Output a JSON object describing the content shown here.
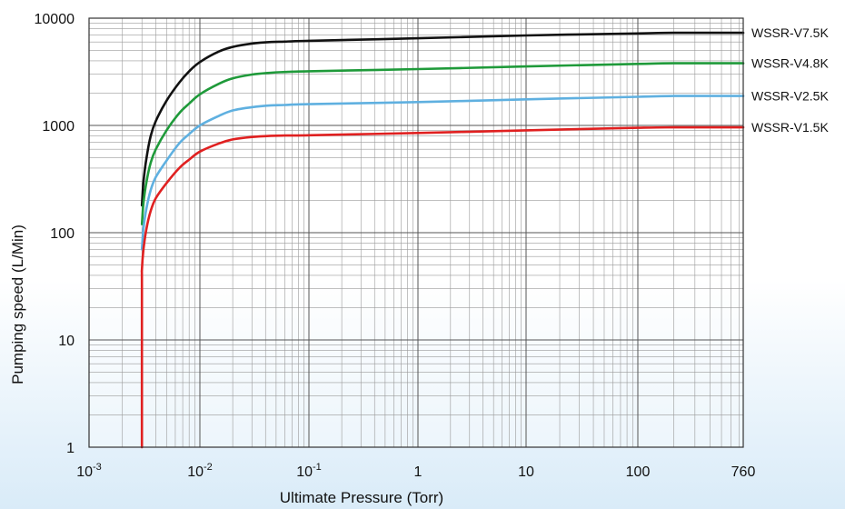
{
  "chart_data": {
    "type": "line",
    "title": "",
    "xlabel": "Ultimate Pressure (Torr)",
    "ylabel": "Pumping speed (L/Min)",
    "x_scale": "log",
    "y_scale": "log",
    "xlim": [
      0.001,
      760
    ],
    "ylim": [
      1,
      10000
    ],
    "grid": true,
    "x_ticks": [
      {
        "value": 0.001,
        "base": "10",
        "exp": "-3"
      },
      {
        "value": 0.01,
        "base": "10",
        "exp": "-2"
      },
      {
        "value": 0.1,
        "base": "10",
        "exp": "-1"
      },
      {
        "value": 1,
        "base": "1",
        "exp": ""
      },
      {
        "value": 10,
        "base": "10",
        "exp": ""
      },
      {
        "value": 100,
        "base": "100",
        "exp": ""
      },
      {
        "value": 760,
        "base": "760",
        "exp": ""
      }
    ],
    "y_ticks": [
      {
        "value": 1,
        "label": "1"
      },
      {
        "value": 10,
        "label": "10"
      },
      {
        "value": 100,
        "label": "100"
      },
      {
        "value": 1000,
        "label": "1000"
      },
      {
        "value": 10000,
        "label": "10000"
      }
    ],
    "series": [
      {
        "name": "WSSR-V7.5K",
        "color": "#111111",
        "x": [
          0.003,
          0.0031,
          0.0033,
          0.0036,
          0.004,
          0.005,
          0.0065,
          0.008,
          0.01,
          0.015,
          0.02,
          0.03,
          0.045,
          0.06,
          0.1,
          1,
          10,
          100,
          200,
          760
        ],
        "y": [
          180,
          300,
          500,
          800,
          1100,
          1700,
          2500,
          3200,
          3900,
          4900,
          5400,
          5800,
          6000,
          6050,
          6150,
          6500,
          6900,
          7200,
          7300,
          7300
        ]
      },
      {
        "name": "WSSR-V4.8K",
        "color": "#1f9a3a",
        "x": [
          0.003,
          0.0031,
          0.0033,
          0.0036,
          0.004,
          0.005,
          0.0065,
          0.008,
          0.01,
          0.015,
          0.02,
          0.03,
          0.045,
          0.06,
          0.1,
          1,
          10,
          100,
          200,
          760
        ],
        "y": [
          120,
          190,
          300,
          450,
          600,
          900,
          1300,
          1600,
          1950,
          2450,
          2750,
          2980,
          3100,
          3150,
          3200,
          3350,
          3550,
          3750,
          3800,
          3800
        ]
      },
      {
        "name": "WSSR-V2.5K",
        "color": "#5fb0e0",
        "x": [
          0.003,
          0.0031,
          0.0033,
          0.0036,
          0.004,
          0.005,
          0.0065,
          0.008,
          0.01,
          0.015,
          0.02,
          0.03,
          0.045,
          0.06,
          0.1,
          1,
          10,
          100,
          200,
          760
        ],
        "y": [
          70,
          110,
          170,
          250,
          330,
          470,
          680,
          830,
          1000,
          1230,
          1380,
          1480,
          1540,
          1550,
          1580,
          1650,
          1750,
          1850,
          1880,
          1880
        ]
      },
      {
        "name": "WSSR-V1.5K",
        "color": "#e02020",
        "x": [
          0.003,
          0.003,
          0.003,
          0.0031,
          0.0033,
          0.0036,
          0.004,
          0.005,
          0.0065,
          0.008,
          0.01,
          0.015,
          0.02,
          0.03,
          0.045,
          0.06,
          0.1,
          1,
          10,
          100,
          200,
          760
        ],
        "y": [
          1,
          30,
          45,
          70,
          110,
          160,
          210,
          290,
          400,
          480,
          570,
          680,
          740,
          780,
          800,
          805,
          810,
          850,
          900,
          950,
          960,
          960
        ]
      }
    ]
  }
}
